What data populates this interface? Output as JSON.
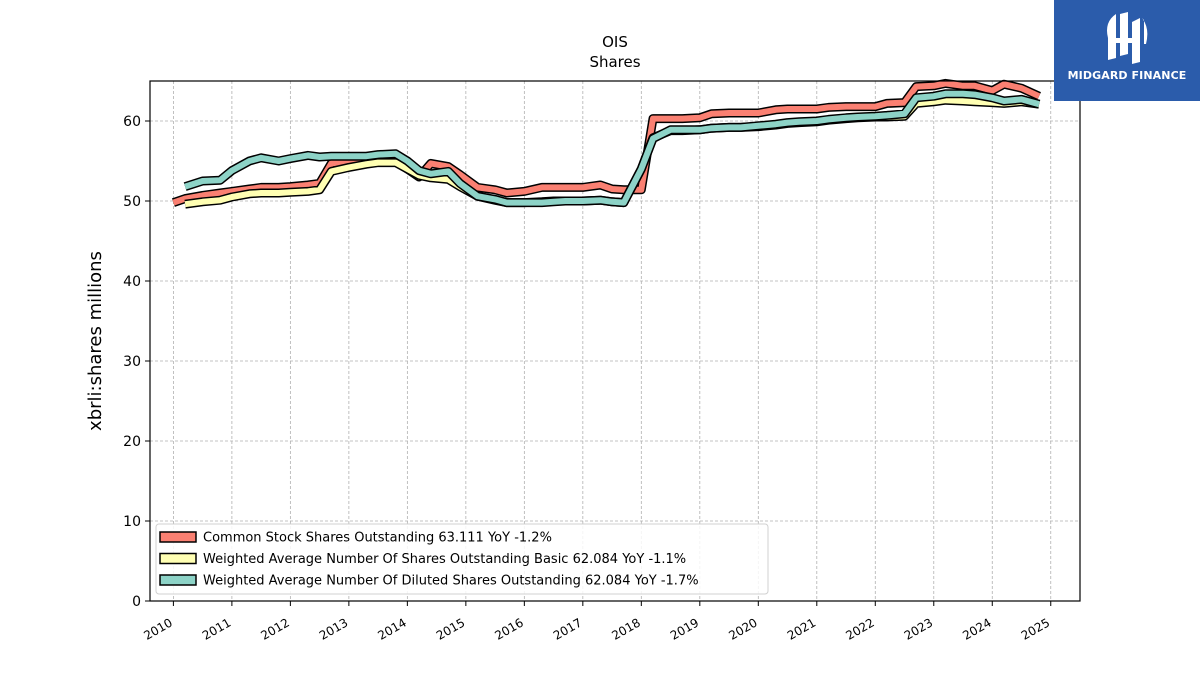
{
  "logo": {
    "text": "MIDGARD FINANCE"
  },
  "chart_data": {
    "type": "line",
    "title": "OIS",
    "subtitle": "Shares",
    "xlabel": "",
    "ylabel": "xbrli:shares millions",
    "xlim": [
      2009.6,
      2025.5
    ],
    "ylim": [
      0,
      65
    ],
    "yticks": [
      0,
      10,
      20,
      30,
      40,
      50,
      60
    ],
    "xticks": [
      "2010",
      "2011",
      "2012",
      "2013",
      "2014",
      "2015",
      "2016",
      "2017",
      "2018",
      "2019",
      "2020",
      "2021",
      "2022",
      "2023",
      "2024",
      "2025"
    ],
    "grid": true,
    "legend_position": "lower-left",
    "series": [
      {
        "name": "Common Stock Shares Outstanding  63.111 YoY -1.2%",
        "color": "#fa8072",
        "points": [
          [
            2010.0,
            49.8
          ],
          [
            2010.2,
            50.3
          ],
          [
            2010.5,
            50.7
          ],
          [
            2010.8,
            51.0
          ],
          [
            2011.0,
            51.2
          ],
          [
            2011.3,
            51.5
          ],
          [
            2011.5,
            51.7
          ],
          [
            2011.8,
            51.7
          ],
          [
            2012.0,
            51.8
          ],
          [
            2012.3,
            52.0
          ],
          [
            2012.5,
            52.2
          ],
          [
            2012.7,
            54.7
          ],
          [
            2013.0,
            54.9
          ],
          [
            2013.3,
            55.0
          ],
          [
            2013.5,
            55.1
          ],
          [
            2013.8,
            55.0
          ],
          [
            2014.0,
            54.0
          ],
          [
            2014.2,
            53.0
          ],
          [
            2014.4,
            54.7
          ],
          [
            2014.7,
            54.3
          ],
          [
            2014.9,
            53.3
          ],
          [
            2015.2,
            51.7
          ],
          [
            2015.5,
            51.4
          ],
          [
            2015.7,
            51.0
          ],
          [
            2016.0,
            51.2
          ],
          [
            2016.3,
            51.7
          ],
          [
            2016.5,
            51.7
          ],
          [
            2016.7,
            51.7
          ],
          [
            2017.0,
            51.7
          ],
          [
            2017.3,
            52.0
          ],
          [
            2017.5,
            51.5
          ],
          [
            2017.7,
            51.4
          ],
          [
            2018.0,
            51.4
          ],
          [
            2018.2,
            60.3
          ],
          [
            2018.5,
            60.3
          ],
          [
            2018.7,
            60.3
          ],
          [
            2019.0,
            60.4
          ],
          [
            2019.2,
            60.9
          ],
          [
            2019.5,
            61.0
          ],
          [
            2019.7,
            61.0
          ],
          [
            2020.0,
            61.0
          ],
          [
            2020.3,
            61.4
          ],
          [
            2020.5,
            61.5
          ],
          [
            2020.7,
            61.5
          ],
          [
            2021.0,
            61.5
          ],
          [
            2021.2,
            61.7
          ],
          [
            2021.5,
            61.8
          ],
          [
            2021.7,
            61.8
          ],
          [
            2022.0,
            61.8
          ],
          [
            2022.2,
            62.2
          ],
          [
            2022.5,
            62.3
          ],
          [
            2022.7,
            64.3
          ],
          [
            2023.0,
            64.4
          ],
          [
            2023.2,
            64.7
          ],
          [
            2023.5,
            64.4
          ],
          [
            2023.7,
            64.4
          ],
          [
            2024.0,
            63.8
          ],
          [
            2024.2,
            64.6
          ],
          [
            2024.5,
            64.1
          ],
          [
            2024.8,
            63.1
          ]
        ]
      },
      {
        "name": "Weighted Average Number Of Shares Outstanding Basic  62.084 YoY -1.1%",
        "color": "#ffffb3",
        "points": [
          [
            2010.2,
            49.6
          ],
          [
            2010.5,
            49.9
          ],
          [
            2010.8,
            50.1
          ],
          [
            2011.0,
            50.5
          ],
          [
            2011.3,
            50.9
          ],
          [
            2011.5,
            51.0
          ],
          [
            2011.8,
            51.0
          ],
          [
            2012.0,
            51.1
          ],
          [
            2012.3,
            51.2
          ],
          [
            2012.5,
            51.4
          ],
          [
            2012.7,
            53.7
          ],
          [
            2013.0,
            54.2
          ],
          [
            2013.3,
            54.6
          ],
          [
            2013.5,
            54.8
          ],
          [
            2013.8,
            54.8
          ],
          [
            2014.0,
            54.0
          ],
          [
            2014.2,
            53.2
          ],
          [
            2014.4,
            52.9
          ],
          [
            2014.7,
            52.7
          ],
          [
            2014.9,
            51.8
          ],
          [
            2015.2,
            50.6
          ],
          [
            2015.5,
            50.1
          ],
          [
            2015.7,
            49.8
          ],
          [
            2016.0,
            49.8
          ],
          [
            2016.3,
            49.9
          ],
          [
            2016.5,
            50.0
          ],
          [
            2016.7,
            50.0
          ],
          [
            2017.0,
            50.0
          ],
          [
            2017.3,
            50.1
          ],
          [
            2017.5,
            49.9
          ],
          [
            2017.7,
            49.8
          ],
          [
            2018.0,
            54.0
          ],
          [
            2018.2,
            57.9
          ],
          [
            2018.5,
            58.8
          ],
          [
            2018.7,
            58.8
          ],
          [
            2019.0,
            58.9
          ],
          [
            2019.2,
            59.1
          ],
          [
            2019.5,
            59.2
          ],
          [
            2019.7,
            59.2
          ],
          [
            2020.0,
            59.3
          ],
          [
            2020.3,
            59.5
          ],
          [
            2020.5,
            59.7
          ],
          [
            2020.7,
            59.8
          ],
          [
            2021.0,
            59.9
          ],
          [
            2021.2,
            60.1
          ],
          [
            2021.5,
            60.3
          ],
          [
            2021.7,
            60.4
          ],
          [
            2022.0,
            60.5
          ],
          [
            2022.2,
            60.5
          ],
          [
            2022.5,
            60.6
          ],
          [
            2022.7,
            62.2
          ],
          [
            2023.0,
            62.4
          ],
          [
            2023.2,
            62.6
          ],
          [
            2023.5,
            62.5
          ],
          [
            2023.7,
            62.4
          ],
          [
            2024.0,
            62.3
          ],
          [
            2024.2,
            62.2
          ],
          [
            2024.5,
            62.4
          ],
          [
            2024.8,
            62.1
          ]
        ]
      },
      {
        "name": "Weighted Average Number Of Diluted Shares Outstanding  62.084 YoY -1.7%",
        "color": "#8dd3c7",
        "points": [
          [
            2010.2,
            51.8
          ],
          [
            2010.5,
            52.5
          ],
          [
            2010.8,
            52.6
          ],
          [
            2011.0,
            53.8
          ],
          [
            2011.3,
            55.0
          ],
          [
            2011.5,
            55.4
          ],
          [
            2011.8,
            55.0
          ],
          [
            2012.0,
            55.3
          ],
          [
            2012.3,
            55.7
          ],
          [
            2012.5,
            55.5
          ],
          [
            2012.7,
            55.6
          ],
          [
            2013.0,
            55.6
          ],
          [
            2013.3,
            55.6
          ],
          [
            2013.5,
            55.8
          ],
          [
            2013.8,
            55.9
          ],
          [
            2014.0,
            55.0
          ],
          [
            2014.2,
            53.8
          ],
          [
            2014.4,
            53.4
          ],
          [
            2014.7,
            53.7
          ],
          [
            2014.9,
            52.2
          ],
          [
            2015.2,
            50.6
          ],
          [
            2015.5,
            50.2
          ],
          [
            2015.7,
            49.8
          ],
          [
            2016.0,
            49.8
          ],
          [
            2016.3,
            49.8
          ],
          [
            2016.5,
            49.9
          ],
          [
            2016.7,
            50.0
          ],
          [
            2017.0,
            50.0
          ],
          [
            2017.3,
            50.1
          ],
          [
            2017.5,
            49.9
          ],
          [
            2017.7,
            49.8
          ],
          [
            2018.0,
            54.0
          ],
          [
            2018.2,
            57.8
          ],
          [
            2018.5,
            58.9
          ],
          [
            2018.7,
            58.9
          ],
          [
            2019.0,
            58.9
          ],
          [
            2019.2,
            59.1
          ],
          [
            2019.5,
            59.2
          ],
          [
            2019.7,
            59.2
          ],
          [
            2020.0,
            59.4
          ],
          [
            2020.3,
            59.6
          ],
          [
            2020.5,
            59.8
          ],
          [
            2020.7,
            59.9
          ],
          [
            2021.0,
            60.0
          ],
          [
            2021.2,
            60.2
          ],
          [
            2021.5,
            60.4
          ],
          [
            2021.7,
            60.5
          ],
          [
            2022.0,
            60.6
          ],
          [
            2022.2,
            60.7
          ],
          [
            2022.5,
            60.9
          ],
          [
            2022.7,
            62.9
          ],
          [
            2023.0,
            63.1
          ],
          [
            2023.2,
            63.4
          ],
          [
            2023.5,
            63.4
          ],
          [
            2023.7,
            63.3
          ],
          [
            2024.0,
            62.9
          ],
          [
            2024.2,
            62.5
          ],
          [
            2024.5,
            62.7
          ],
          [
            2024.8,
            62.1
          ]
        ]
      }
    ]
  }
}
